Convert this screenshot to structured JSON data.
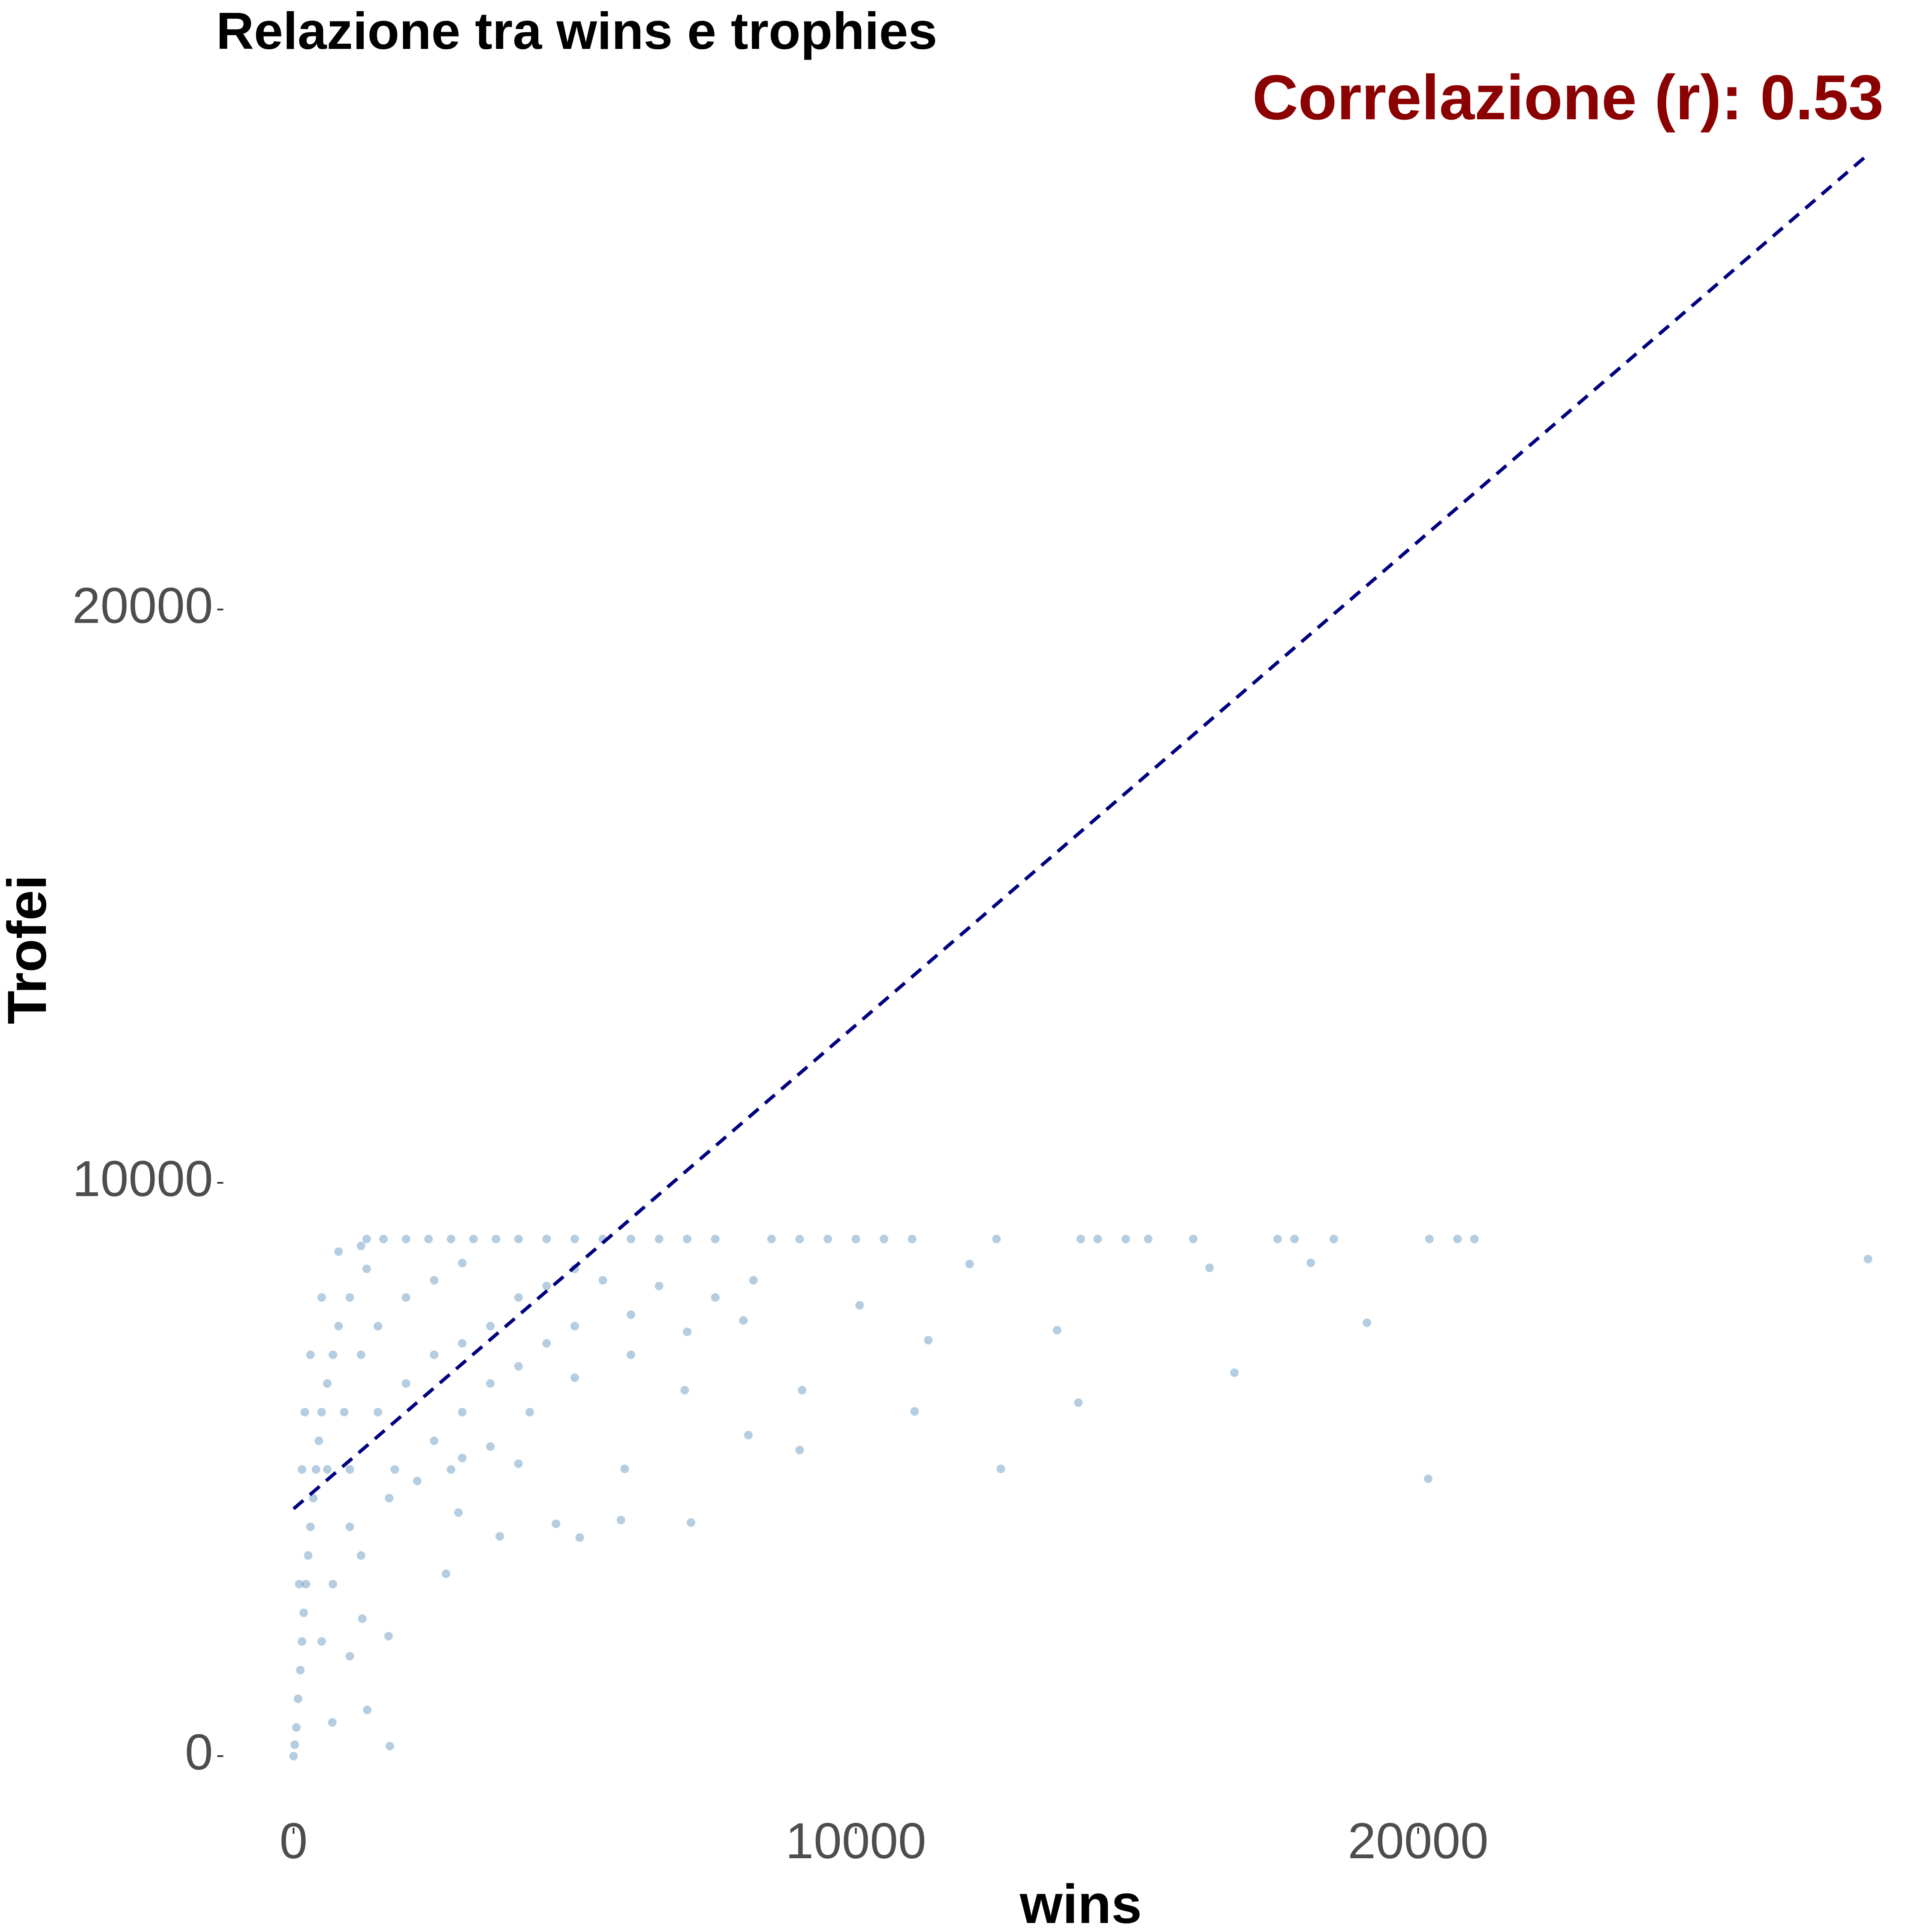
{
  "chart_data": {
    "type": "scatter",
    "title": "Relazione tra wins e trophies",
    "annotation": "Correlazione (r): 0.53",
    "x_label": "wins",
    "y_label": "Trofei",
    "color": "#4682b4",
    "annotation_color": "#8b0000",
    "xlim": [
      -1250,
      28950
    ],
    "ylim": [
      -1250,
      29300
    ],
    "xticks": [
      0,
      10000,
      20000
    ],
    "yticks": [
      0,
      10000,
      20000
    ],
    "grid": false,
    "x": [
      1300,
      1600,
      2000,
      2400,
      2800,
      3200,
      3600,
      4000,
      4500,
      5000,
      5500,
      6000,
      6500,
      7000,
      7500,
      8500,
      9000,
      9500,
      10000,
      10500,
      11000,
      12500,
      14000,
      14300,
      14800,
      15200,
      16000,
      17500,
      17800,
      18500,
      20200,
      20700,
      21000,
      28000,
      19089,
      16733,
      13956,
      13578,
      16289,
      18089,
      20178,
      11044,
      11289,
      12578,
      9000,
      8089,
      9044,
      10067,
      12022,
      7067,
      5822,
      4667,
      5089,
      6956,
      8178,
      5889,
      3667,
      2933,
      2711,
      1222,
      1311,
      1711,
      689,
      1000,
      1689,
      50,
      80,
      120,
      150,
      180,
      220,
      260,
      300,
      350,
      400,
      450,
      500,
      600,
      700,
      800,
      1000,
      1300,
      0,
      20,
      100,
      150,
      200,
      300,
      500,
      800,
      1200,
      600,
      900,
      1200,
      1500,
      2000,
      2500,
      3000,
      1000,
      1500,
      2000,
      2500,
      3000,
      3500,
      4000,
      4500,
      5000,
      5500,
      1800,
      2500,
      3000,
      3500,
      4000,
      4500,
      5000,
      6000,
      2200,
      3000,
      4000,
      1000,
      700,
      500,
      1200,
      1700,
      2800,
      3500,
      4200,
      5000,
      6000,
      7000,
      7500,
      8000,
      6500
    ],
    "y": [
      9020,
      9020,
      9020,
      9020,
      9020,
      9020,
      9020,
      9020,
      9020,
      9020,
      9020,
      9020,
      9020,
      9020,
      9020,
      9020,
      9020,
      9020,
      9020,
      9020,
      9020,
      9020,
      9020,
      9020,
      9020,
      9020,
      9020,
      9020,
      9020,
      9020,
      9020,
      9020,
      9020,
      8670,
      7560,
      6688,
      6166,
      7429,
      8518,
      8605,
      4837,
      6013,
      7255,
      5011,
      5338,
      5600,
      6383,
      7865,
      8584,
      4074,
      4118,
      4052,
      3813,
      6383,
      8301,
      5011,
      3834,
      4248,
      3181,
      2397,
      806,
      174,
      588,
      1743,
      2092,
      500,
      1000,
      1500,
      2000,
      2500,
      3000,
      3500,
      4000,
      4500,
      5000,
      5500,
      6000,
      6500,
      7000,
      7500,
      8000,
      8500,
      0,
      200,
      3000,
      5000,
      6000,
      7000,
      8000,
      8800,
      8900,
      5000,
      6000,
      7000,
      7500,
      8000,
      8300,
      8600,
      5000,
      6000,
      6500,
      7000,
      7200,
      7500,
      8000,
      8200,
      8500,
      8300,
      5000,
      5500,
      6000,
      6500,
      6800,
      7200,
      7500,
      7700,
      4800,
      5200,
      5100,
      4000,
      3000,
      2000,
      3500,
      4500,
      5000,
      5400,
      6000,
      6600,
      7000,
      7400,
      8000,
      7600,
      8200
    ],
    "trend": {
      "x": [
        0,
        28044
      ],
      "y": [
        4314,
        27974
      ],
      "color": "#000080"
    }
  }
}
